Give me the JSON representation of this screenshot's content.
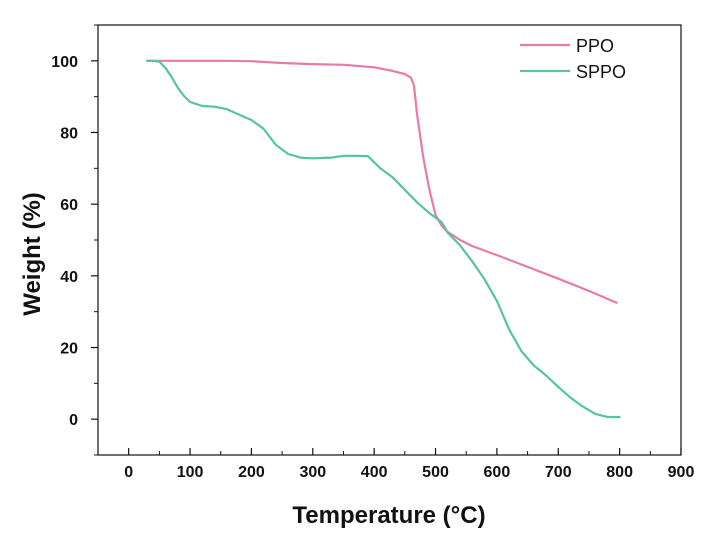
{
  "chart_data": {
    "type": "line",
    "title": "",
    "xlabel": "Temperature (°C)",
    "ylabel": "Weight  (%)",
    "xlim": [
      -50,
      900
    ],
    "ylim": [
      -10,
      110
    ],
    "xticks": [
      0,
      100,
      200,
      300,
      400,
      500,
      600,
      700,
      800,
      900
    ],
    "yticks": [
      0,
      20,
      40,
      60,
      80,
      100
    ],
    "grid": false,
    "legend_position": "top-right",
    "series": [
      {
        "name": "PPO",
        "color": "#e87aa8",
        "points": [
          [
            30,
            100
          ],
          [
            50,
            100
          ],
          [
            100,
            100
          ],
          [
            150,
            100
          ],
          [
            200,
            99.9
          ],
          [
            250,
            99.4
          ],
          [
            300,
            99.1
          ],
          [
            350,
            98.9
          ],
          [
            400,
            98.2
          ],
          [
            430,
            97.2
          ],
          [
            450,
            96.3
          ],
          [
            460,
            95.3
          ],
          [
            465,
            93
          ],
          [
            470,
            85
          ],
          [
            480,
            73
          ],
          [
            490,
            64
          ],
          [
            500,
            57
          ],
          [
            510,
            54
          ],
          [
            520,
            52.2
          ],
          [
            540,
            50
          ],
          [
            560,
            48.3
          ],
          [
            600,
            45.8
          ],
          [
            650,
            42.5
          ],
          [
            700,
            39.2
          ],
          [
            750,
            35.8
          ],
          [
            795,
            32.5
          ]
        ]
      },
      {
        "name": "SPPO",
        "color": "#56c49c",
        "points": [
          [
            30,
            100
          ],
          [
            40,
            100
          ],
          [
            50,
            99.8
          ],
          [
            60,
            98
          ],
          [
            70,
            95.5
          ],
          [
            80,
            92.5
          ],
          [
            90,
            90.2
          ],
          [
            100,
            88.5
          ],
          [
            120,
            87.4
          ],
          [
            140,
            87.2
          ],
          [
            160,
            86.5
          ],
          [
            180,
            85
          ],
          [
            200,
            83.5
          ],
          [
            220,
            81
          ],
          [
            240,
            76.5
          ],
          [
            260,
            74
          ],
          [
            280,
            73
          ],
          [
            300,
            72.8
          ],
          [
            330,
            73
          ],
          [
            350,
            73.5
          ],
          [
            370,
            73.5
          ],
          [
            390,
            73.4
          ],
          [
            410,
            70
          ],
          [
            430,
            67.5
          ],
          [
            450,
            64
          ],
          [
            470,
            60.5
          ],
          [
            490,
            57.5
          ],
          [
            510,
            55
          ],
          [
            520,
            52
          ],
          [
            540,
            48.5
          ],
          [
            560,
            44
          ],
          [
            580,
            39
          ],
          [
            600,
            33
          ],
          [
            620,
            25
          ],
          [
            640,
            19
          ],
          [
            660,
            15
          ],
          [
            680,
            12.2
          ],
          [
            700,
            9
          ],
          [
            720,
            6
          ],
          [
            740,
            3.5
          ],
          [
            760,
            1.5
          ],
          [
            780,
            0.6
          ],
          [
            800,
            0.6
          ]
        ]
      }
    ]
  }
}
